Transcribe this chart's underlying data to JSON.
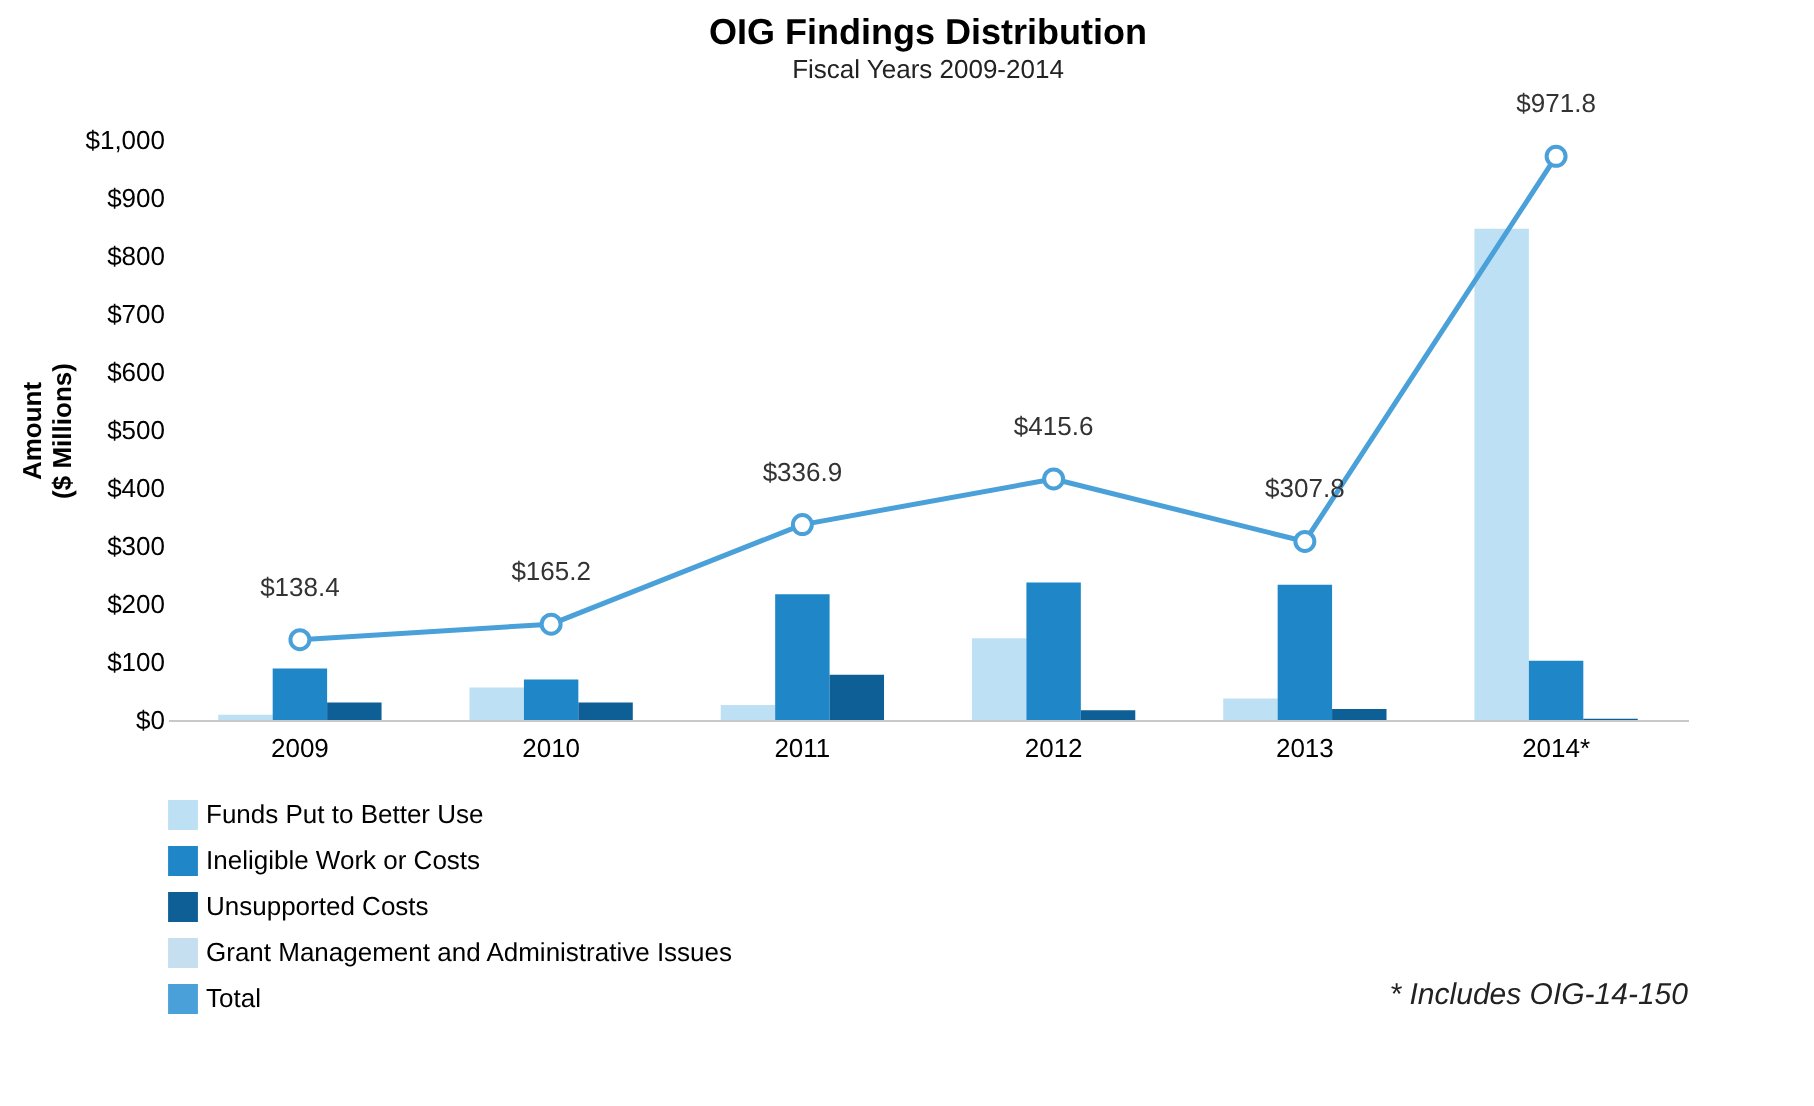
{
  "chart_data": {
    "type": "bar",
    "title": "OIG Findings Distribution",
    "subtitle": "Fiscal Years 2009-2014",
    "ylabel": "Amount\n($ Millions)",
    "categories": [
      "2009",
      "2010",
      "2011",
      "2012",
      "2013",
      "2014*"
    ],
    "series": [
      {
        "name": "Funds Put to Better Use",
        "color": "#bde0f5",
        "values": [
          9,
          56,
          26,
          141,
          37,
          847
        ]
      },
      {
        "name": "Ineligible Work or Costs",
        "color": "#1f86c8",
        "values": [
          89,
          70,
          217,
          237,
          233,
          102
        ]
      },
      {
        "name": "Unsupported Costs",
        "color": "#0e5f96",
        "values": [
          30,
          30,
          78,
          17,
          19,
          2
        ]
      },
      {
        "name": "Grant Management and Administrative Issues",
        "color": "#c5dff0",
        "values": [
          null,
          null,
          null,
          null,
          null,
          null
        ]
      },
      {
        "name": "Total",
        "type": "line",
        "color": "#4aa0d8",
        "marker": "circle",
        "values": [
          138.4,
          165.2,
          336.9,
          415.6,
          307.8,
          971.8
        ],
        "value_labels": [
          "$138.4",
          "$165.2",
          "$336.9",
          "$415.6",
          "$307.8",
          "$971.8"
        ]
      }
    ],
    "ylim": [
      0,
      1000
    ],
    "yticks": [
      {
        "value": 0,
        "label": "$0"
      },
      {
        "value": 100,
        "label": "$100"
      },
      {
        "value": 200,
        "label": "$200"
      },
      {
        "value": 300,
        "label": "$300"
      },
      {
        "value": 400,
        "label": "$400"
      },
      {
        "value": 500,
        "label": "$500"
      },
      {
        "value": 600,
        "label": "$600"
      },
      {
        "value": 700,
        "label": "$700"
      },
      {
        "value": 800,
        "label": "$800"
      },
      {
        "value": 900,
        "label": "$900"
      },
      {
        "value": 1000,
        "label": "$1,000"
      }
    ],
    "grid": false,
    "legend": "bottom left",
    "annotations": [
      "* Includes OIG-14-150"
    ]
  }
}
